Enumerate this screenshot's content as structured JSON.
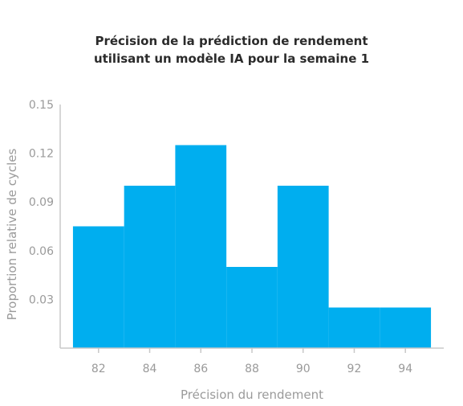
{
  "chart_data": {
    "type": "bar",
    "title_line1": "Précision de la prédiction de rendement",
    "title_line2": "utilisant un modèle IA pour la semaine 1",
    "xlabel": "Précision du rendement",
    "ylabel": "Proportion relative de cycles",
    "bins": [
      {
        "x0": 81,
        "x1": 83,
        "value": 0.075
      },
      {
        "x0": 83,
        "x1": 85,
        "value": 0.1
      },
      {
        "x0": 85,
        "x1": 87,
        "value": 0.125
      },
      {
        "x0": 87,
        "x1": 89,
        "value": 0.05
      },
      {
        "x0": 89,
        "x1": 91,
        "value": 0.1
      },
      {
        "x0": 91,
        "x1": 93,
        "value": 0.025
      },
      {
        "x0": 93,
        "x1": 95,
        "value": 0.025
      }
    ],
    "xticks": [
      82,
      84,
      86,
      88,
      90,
      92,
      94
    ],
    "xtick_labels": [
      "82",
      "84",
      "86",
      "88",
      "90",
      "92",
      "94"
    ],
    "yticks": [
      0.03,
      0.06,
      0.09,
      0.12,
      0.15
    ],
    "ytick_labels": [
      "0.03",
      "0.06",
      "0.09",
      "0.12",
      "0.15"
    ],
    "xlim": [
      80.5,
      95.5
    ],
    "ylim": [
      0,
      0.15
    ],
    "grid": false,
    "bar_color": "#00aeef",
    "axis_color": "#c8c8c8",
    "text_color": "#9a9a9a"
  }
}
